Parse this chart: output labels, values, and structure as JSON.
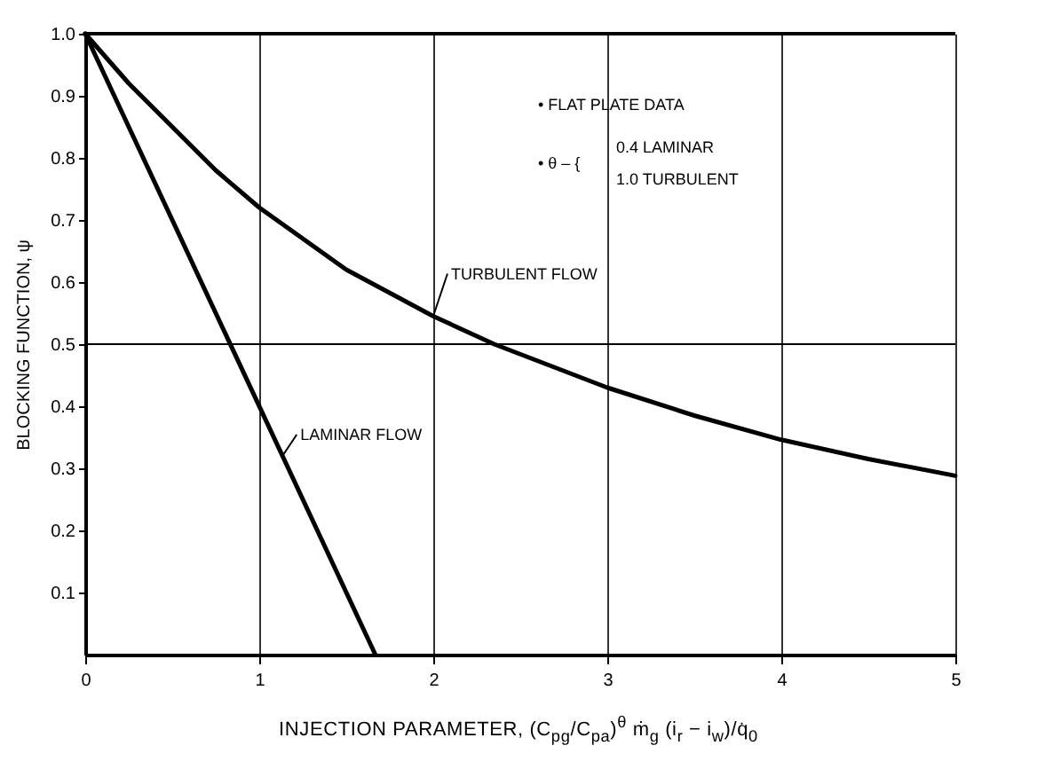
{
  "chart_data": {
    "type": "line",
    "xlabel": "INJECTION PARAMETER, (C$_{pg}$/C$_{pa}$)$^{θ}$ ṁ$_{g}$ (i$_{r}$ − i$_{w}$)/q̇$_{0}$",
    "ylabel": "BLOCKING FUNCTION, ψ",
    "series": [
      {
        "name": "TURBULENT FLOW",
        "color": "#000000",
        "x": [
          0,
          0.25,
          0.5,
          0.75,
          1,
          1.5,
          2,
          2.35,
          3,
          3.5,
          4,
          4.5,
          5
        ],
        "values": [
          1,
          0.92,
          0.85,
          0.78,
          0.72,
          0.62,
          0.545,
          0.5,
          0.43,
          0.385,
          0.346,
          0.315,
          0.288
        ]
      },
      {
        "name": "LAMINAR FLOW",
        "color": "#000000",
        "x": [
          0,
          1.667
        ],
        "values": [
          1,
          0
        ]
      }
    ],
    "xlim": [
      0,
      5
    ],
    "ylim": [
      0,
      1
    ],
    "xticks": [
      0,
      1,
      2,
      3,
      4,
      5
    ],
    "yticks": [
      0.1,
      0.2,
      0.3,
      0.4,
      0.5,
      0.6,
      0.7,
      0.8,
      0.9,
      {
        "value": 1,
        "label": "1.0"
      }
    ],
    "grid": "x",
    "ref_lines": [
      {
        "axis": "y",
        "value": 0.5
      }
    ],
    "annotations": [
      "• FLAT PLATE DATA",
      "• θ – {",
      "0.4 LAMINAR",
      "1.0 TURBULENT"
    ],
    "marker": "none",
    "line_style": "solid"
  }
}
